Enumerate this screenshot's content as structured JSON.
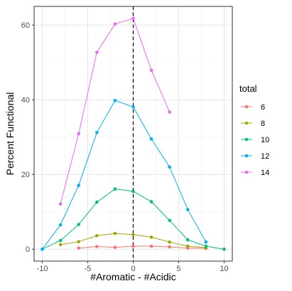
{
  "chart_data": {
    "type": "line",
    "title": "",
    "xlabel": "#Aromatic - #Acidic",
    "ylabel": "Percent Functional",
    "xlim": [
      -10.9,
      10.9
    ],
    "ylim": [
      -3.2,
      65
    ],
    "x_ticks": [
      -10,
      -5,
      0,
      5,
      10
    ],
    "y_ticks": [
      0,
      20,
      40,
      60
    ],
    "x_tick_labels": [
      "-10",
      "-5",
      "0",
      "5",
      "10"
    ],
    "y_tick_labels": [
      "0",
      "20",
      "40",
      "60"
    ],
    "grid": true,
    "vline": {
      "x": 0,
      "style": "dashed",
      "color": "#000000"
    },
    "legend": {
      "title": "total",
      "position": "right"
    },
    "series": [
      {
        "name": "6",
        "color": "#F8766D",
        "x": [
          -6,
          -4,
          -2,
          0,
          2,
          4,
          6,
          8
        ],
        "y": [
          0.3,
          0.7,
          0.5,
          0.8,
          0.8,
          0.6,
          0.3,
          0.2
        ]
      },
      {
        "name": "8",
        "color": "#A3A500",
        "x": [
          -8,
          -6,
          -4,
          -2,
          0,
          2,
          4,
          6,
          8
        ],
        "y": [
          1.2,
          2.0,
          3.6,
          4.2,
          3.9,
          3.2,
          1.9,
          0.8,
          0.4
        ]
      },
      {
        "name": "10",
        "color": "#00BF7D",
        "x": [
          -10,
          -8,
          -6,
          -4,
          -2,
          0,
          2,
          4,
          6,
          8,
          10
        ],
        "y": [
          0.0,
          2.3,
          6.6,
          12.6,
          16.1,
          15.5,
          12.7,
          7.7,
          2.5,
          0.8,
          0.0
        ]
      },
      {
        "name": "12",
        "color": "#00B0F6",
        "x": [
          -10,
          -8,
          -6,
          -4,
          -2,
          0,
          2,
          4,
          6,
          8
        ],
        "y": [
          0.0,
          6.5,
          17.1,
          31.2,
          39.8,
          38.1,
          29.5,
          22.0,
          10.6,
          1.9
        ]
      },
      {
        "name": "14",
        "color": "#E76BF3",
        "x": [
          -8,
          -6,
          -4,
          -2,
          0,
          2,
          4
        ],
        "y": [
          12.1,
          30.9,
          52.7,
          60.3,
          61.8,
          47.9,
          36.7
        ]
      }
    ]
  }
}
